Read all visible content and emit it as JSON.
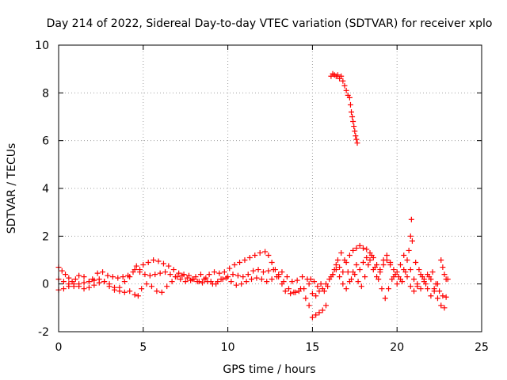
{
  "chart_data": {
    "type": "scatter",
    "title": "Day 214 of 2022, Sidereal Day-to-day VTEC variation (SDTVAR) for receiver xplo",
    "xlabel": "GPS time / hours",
    "ylabel": "SDTVAR / TECUs",
    "xlim": [
      0,
      25
    ],
    "ylim": [
      -2,
      10
    ],
    "xticks": [
      0,
      5,
      10,
      15,
      20,
      25
    ],
    "yticks": [
      -2,
      0,
      2,
      4,
      6,
      8,
      10
    ],
    "grid": true,
    "marker": "+",
    "series": [
      {
        "name": "SDTVAR",
        "color": "#ff0000",
        "points": [
          [
            0.0,
            0.7
          ],
          [
            0.2,
            0.55
          ],
          [
            0.4,
            0.4
          ],
          [
            0.6,
            0.25
          ],
          [
            0.8,
            0.1
          ],
          [
            1.0,
            0.2
          ],
          [
            1.2,
            0.35
          ],
          [
            1.5,
            0.3
          ],
          [
            1.8,
            0.1
          ],
          [
            2.0,
            0.2
          ],
          [
            2.3,
            0.45
          ],
          [
            2.6,
            0.5
          ],
          [
            2.9,
            0.35
          ],
          [
            3.2,
            0.3
          ],
          [
            3.5,
            0.25
          ],
          [
            3.8,
            0.3
          ],
          [
            4.1,
            0.35
          ],
          [
            4.4,
            0.5
          ],
          [
            4.6,
            0.75
          ],
          [
            4.8,
            0.6
          ],
          [
            5.0,
            0.8
          ],
          [
            5.3,
            0.9
          ],
          [
            5.6,
            1.0
          ],
          [
            5.9,
            0.95
          ],
          [
            6.2,
            0.85
          ],
          [
            6.5,
            0.75
          ],
          [
            6.8,
            0.6
          ],
          [
            7.1,
            0.45
          ],
          [
            7.4,
            0.4
          ],
          [
            7.7,
            0.35
          ],
          [
            8.0,
            0.2
          ],
          [
            8.3,
            0.1
          ],
          [
            8.6,
            0.2
          ],
          [
            8.9,
            0.4
          ],
          [
            9.2,
            0.5
          ],
          [
            9.5,
            0.45
          ],
          [
            9.8,
            0.5
          ],
          [
            10.1,
            0.65
          ],
          [
            10.4,
            0.8
          ],
          [
            10.7,
            0.9
          ],
          [
            11.0,
            1.0
          ],
          [
            11.3,
            1.1
          ],
          [
            11.6,
            1.2
          ],
          [
            11.9,
            1.3
          ],
          [
            12.2,
            1.35
          ],
          [
            12.4,
            1.2
          ],
          [
            12.6,
            0.9
          ],
          [
            12.8,
            0.6
          ],
          [
            13.0,
            0.3
          ],
          [
            13.2,
            0.0
          ],
          [
            13.4,
            -0.3
          ],
          [
            13.7,
            -0.4
          ],
          [
            14.0,
            -0.35
          ],
          [
            14.3,
            -0.2
          ],
          [
            14.6,
            -0.6
          ],
          [
            14.8,
            -0.9
          ],
          [
            0.0,
            -0.25
          ],
          [
            0.3,
            -0.2
          ],
          [
            0.6,
            -0.1
          ],
          [
            0.9,
            0.0
          ],
          [
            1.2,
            -0.1
          ],
          [
            1.5,
            -0.2
          ],
          [
            1.8,
            -0.15
          ],
          [
            2.1,
            -0.05
          ],
          [
            2.4,
            0.05
          ],
          [
            2.7,
            0.1
          ],
          [
            3.0,
            0.0
          ],
          [
            3.3,
            -0.15
          ],
          [
            3.6,
            -0.3
          ],
          [
            3.9,
            -0.35
          ],
          [
            4.2,
            -0.3
          ],
          [
            4.5,
            -0.45
          ],
          [
            4.7,
            -0.5
          ],
          [
            4.9,
            -0.2
          ],
          [
            5.2,
            0.0
          ],
          [
            5.5,
            -0.1
          ],
          [
            5.8,
            -0.3
          ],
          [
            6.1,
            -0.35
          ],
          [
            6.4,
            -0.1
          ],
          [
            6.7,
            0.1
          ],
          [
            7.0,
            0.3
          ],
          [
            7.3,
            0.35
          ],
          [
            7.6,
            0.25
          ],
          [
            7.9,
            0.2
          ],
          [
            8.2,
            0.1
          ],
          [
            8.5,
            0.05
          ],
          [
            8.8,
            0.1
          ],
          [
            9.1,
            0.0
          ],
          [
            9.4,
            0.1
          ],
          [
            9.7,
            0.2
          ],
          [
            10.0,
            0.3
          ],
          [
            10.3,
            0.4
          ],
          [
            10.6,
            0.35
          ],
          [
            10.9,
            0.3
          ],
          [
            11.2,
            0.4
          ],
          [
            11.5,
            0.55
          ],
          [
            11.8,
            0.6
          ],
          [
            12.1,
            0.5
          ],
          [
            12.4,
            0.55
          ],
          [
            12.7,
            0.6
          ],
          [
            13.0,
            0.4
          ],
          [
            13.3,
            0.1
          ],
          [
            13.6,
            -0.2
          ],
          [
            13.9,
            -0.35
          ],
          [
            14.2,
            -0.3
          ],
          [
            14.5,
            -0.2
          ],
          [
            14.8,
            0.0
          ],
          [
            0.0,
            0.2
          ],
          [
            0.3,
            0.1
          ],
          [
            0.6,
            0.0
          ],
          [
            0.9,
            -0.1
          ],
          [
            1.2,
            0.0
          ],
          [
            1.5,
            0.05
          ],
          [
            1.8,
            0.1
          ],
          [
            2.1,
            0.15
          ],
          [
            2.4,
            0.2
          ],
          [
            2.7,
            0.1
          ],
          [
            3.0,
            -0.1
          ],
          [
            3.3,
            -0.25
          ],
          [
            3.6,
            -0.15
          ],
          [
            3.9,
            0.1
          ],
          [
            4.2,
            0.3
          ],
          [
            4.5,
            0.6
          ],
          [
            4.8,
            0.5
          ],
          [
            5.1,
            0.4
          ],
          [
            5.4,
            0.35
          ],
          [
            5.7,
            0.4
          ],
          [
            6.0,
            0.45
          ],
          [
            6.3,
            0.5
          ],
          [
            6.6,
            0.4
          ],
          [
            6.9,
            0.3
          ],
          [
            7.2,
            0.2
          ],
          [
            7.5,
            0.1
          ],
          [
            7.8,
            0.15
          ],
          [
            8.1,
            0.3
          ],
          [
            8.4,
            0.4
          ],
          [
            8.7,
            0.25
          ],
          [
            9.0,
            0.1
          ],
          [
            9.3,
            0.0
          ],
          [
            9.6,
            0.2
          ],
          [
            9.9,
            0.25
          ],
          [
            10.2,
            0.1
          ],
          [
            10.5,
            -0.05
          ],
          [
            10.8,
            0.0
          ],
          [
            11.1,
            0.1
          ],
          [
            11.4,
            0.2
          ],
          [
            11.7,
            0.25
          ],
          [
            12.0,
            0.2
          ],
          [
            12.3,
            0.1
          ],
          [
            12.6,
            0.2
          ],
          [
            12.9,
            0.3
          ],
          [
            13.2,
            0.5
          ],
          [
            13.5,
            0.3
          ],
          [
            13.8,
            0.1
          ],
          [
            14.1,
            0.15
          ],
          [
            14.4,
            0.3
          ],
          [
            14.7,
            0.2
          ],
          [
            15.0,
            -1.4
          ],
          [
            15.2,
            -1.3
          ],
          [
            15.4,
            -1.2
          ],
          [
            15.6,
            -1.1
          ],
          [
            15.8,
            -0.9
          ],
          [
            15.0,
            -0.4
          ],
          [
            15.2,
            -0.5
          ],
          [
            15.4,
            -0.3
          ],
          [
            15.6,
            -0.2
          ],
          [
            15.8,
            0.0
          ],
          [
            16.0,
            0.2
          ],
          [
            16.2,
            0.4
          ],
          [
            16.4,
            0.8
          ],
          [
            16.6,
            0.7
          ],
          [
            16.8,
            0.5
          ],
          [
            17.0,
            0.9
          ],
          [
            17.2,
            1.2
          ],
          [
            17.4,
            1.4
          ],
          [
            17.6,
            1.5
          ],
          [
            17.8,
            1.6
          ],
          [
            18.0,
            1.5
          ],
          [
            18.2,
            1.45
          ],
          [
            18.4,
            1.3
          ],
          [
            18.6,
            1.1
          ],
          [
            18.8,
            0.8
          ],
          [
            19.0,
            0.5
          ],
          [
            19.2,
            0.8
          ],
          [
            19.4,
            1.0
          ],
          [
            19.6,
            0.9
          ],
          [
            19.8,
            0.6
          ],
          [
            20.0,
            0.5
          ],
          [
            20.2,
            0.8
          ],
          [
            20.4,
            1.2
          ],
          [
            20.6,
            1.0
          ],
          [
            20.8,
            0.6
          ],
          [
            21.0,
            0.2
          ],
          [
            21.2,
            -0.1
          ],
          [
            21.4,
            -0.2
          ],
          [
            21.6,
            0.1
          ],
          [
            21.8,
            0.4
          ],
          [
            22.0,
            0.2
          ],
          [
            22.2,
            -0.2
          ],
          [
            22.4,
            -0.6
          ],
          [
            22.6,
            -0.9
          ],
          [
            22.8,
            -1.0
          ],
          [
            14.9,
            0.2
          ],
          [
            15.1,
            0.1
          ],
          [
            15.3,
            -0.1
          ],
          [
            15.5,
            0.0
          ],
          [
            15.7,
            -0.3
          ],
          [
            15.9,
            -0.1
          ],
          [
            16.1,
            0.3
          ],
          [
            16.3,
            0.6
          ],
          [
            16.5,
            1.0
          ],
          [
            16.7,
            1.3
          ],
          [
            16.9,
            1.0
          ],
          [
            17.1,
            0.5
          ],
          [
            17.3,
            0.2
          ],
          [
            17.5,
            0.4
          ],
          [
            17.7,
            0.1
          ],
          [
            17.9,
            -0.1
          ],
          [
            18.1,
            0.3
          ],
          [
            18.3,
            0.8
          ],
          [
            18.5,
            1.2
          ],
          [
            18.7,
            0.7
          ],
          [
            18.9,
            0.2
          ],
          [
            19.1,
            -0.2
          ],
          [
            19.3,
            -0.6
          ],
          [
            19.5,
            -0.2
          ],
          [
            19.7,
            0.2
          ],
          [
            19.9,
            0.4
          ],
          [
            20.1,
            0.3
          ],
          [
            20.3,
            0.1
          ],
          [
            20.5,
            0.5
          ],
          [
            20.7,
            1.4
          ],
          [
            20.8,
            2.0
          ],
          [
            20.85,
            2.7
          ],
          [
            20.9,
            1.8
          ],
          [
            21.1,
            0.9
          ],
          [
            21.3,
            0.6
          ],
          [
            21.5,
            0.3
          ],
          [
            21.7,
            0.0
          ],
          [
            21.9,
            0.3
          ],
          [
            22.1,
            0.5
          ],
          [
            22.3,
            0.0
          ],
          [
            22.5,
            -0.3
          ],
          [
            22.7,
            -0.5
          ],
          [
            22.9,
            -0.55
          ],
          [
            16.2,
            0.4
          ],
          [
            16.4,
            0.6
          ],
          [
            16.6,
            0.3
          ],
          [
            16.8,
            0.0
          ],
          [
            17.0,
            -0.2
          ],
          [
            17.2,
            0.1
          ],
          [
            17.4,
            0.5
          ],
          [
            17.6,
            0.8
          ],
          [
            17.8,
            0.6
          ],
          [
            18.0,
            0.9
          ],
          [
            18.2,
            1.1
          ],
          [
            18.4,
            1.0
          ],
          [
            18.6,
            0.6
          ],
          [
            18.8,
            0.3
          ],
          [
            19.0,
            0.6
          ],
          [
            19.2,
            1.0
          ],
          [
            19.4,
            1.2
          ],
          [
            19.6,
            0.8
          ],
          [
            19.8,
            0.3
          ],
          [
            20.0,
            0.0
          ],
          [
            20.2,
            0.2
          ],
          [
            20.4,
            0.6
          ],
          [
            20.6,
            0.3
          ],
          [
            20.8,
            -0.1
          ],
          [
            21.0,
            -0.3
          ],
          [
            21.2,
            0.0
          ],
          [
            21.4,
            0.4
          ],
          [
            21.6,
            0.2
          ],
          [
            21.8,
            -0.2
          ],
          [
            22.0,
            -0.5
          ],
          [
            22.2,
            -0.3
          ],
          [
            22.4,
            0.0
          ],
          [
            22.6,
            1.0
          ],
          [
            22.7,
            0.7
          ],
          [
            22.8,
            0.4
          ],
          [
            22.9,
            0.2
          ],
          [
            23.0,
            0.2
          ],
          [
            16.1,
            8.7
          ],
          [
            16.2,
            8.8
          ],
          [
            16.3,
            8.75
          ],
          [
            16.4,
            8.7
          ],
          [
            16.5,
            8.75
          ],
          [
            16.6,
            8.6
          ],
          [
            16.7,
            8.7
          ],
          [
            16.8,
            8.5
          ],
          [
            16.9,
            8.3
          ],
          [
            17.0,
            8.1
          ],
          [
            17.1,
            7.9
          ],
          [
            17.2,
            7.8
          ],
          [
            17.25,
            7.5
          ],
          [
            17.3,
            7.2
          ],
          [
            17.35,
            7.0
          ],
          [
            17.4,
            6.8
          ],
          [
            17.45,
            6.6
          ],
          [
            17.5,
            6.4
          ],
          [
            17.55,
            6.2
          ],
          [
            17.6,
            6.05
          ],
          [
            17.65,
            5.9
          ]
        ]
      }
    ]
  }
}
